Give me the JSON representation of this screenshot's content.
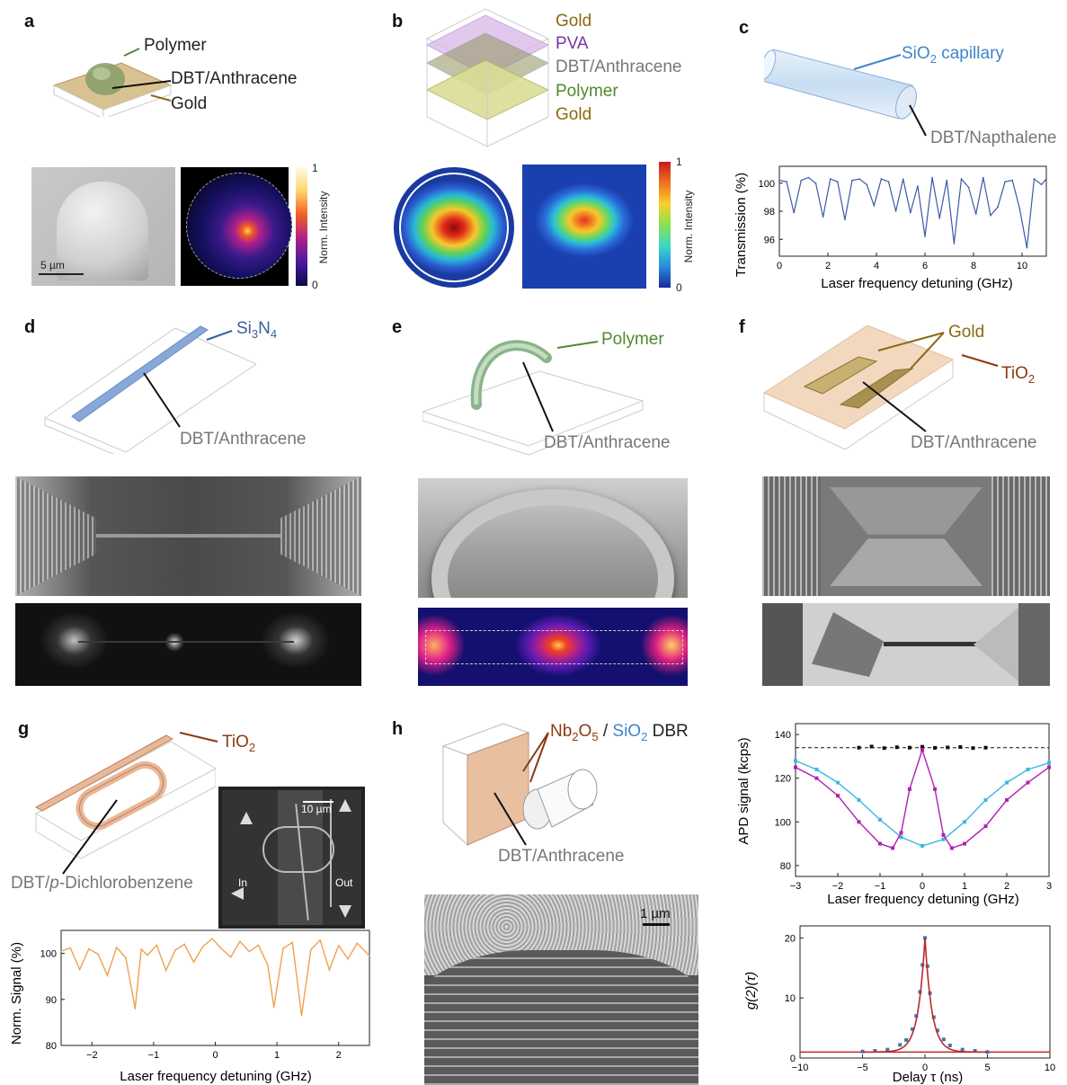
{
  "colors": {
    "polymer": "#4f8a2e",
    "gold": "#8a6a12",
    "grey": "#777777",
    "pva": "#7a32a8",
    "blue": "#3f86c8",
    "si3n4": "#3a5f9c",
    "tio2": "#8b3a10",
    "dbr_nb": "#8b3a10",
    "dbr_sio2": "#3f86c8",
    "orange_trace": "#f0a050",
    "blue_trace": "#3a5aa8",
    "cyan": "#3ab8e0",
    "magenta": "#b020b0",
    "fit_red": "#c0282a"
  },
  "panels": {
    "a": {
      "label": "a",
      "polymer": "Polymer",
      "dbt": "DBT/Anthracene",
      "gold": "Gold",
      "scale": "5 µm",
      "cbar_max": "1",
      "cbar_min": "0",
      "cbar_label": "Norm. Intensity"
    },
    "b": {
      "label": "b",
      "gold_top": "Gold",
      "pva": "PVA",
      "dbt": "DBT/Anthracene",
      "polymer": "Polymer",
      "gold_bottom": "Gold",
      "cbar_max": "1",
      "cbar_min": "0",
      "cbar_label": "Norm. Intensity"
    },
    "c": {
      "label": "c",
      "capillary_prefix": "SiO",
      "capillary_sub": "2",
      "capillary_suffix": " capillary",
      "dbt": "DBT/Napthalene"
    },
    "d": {
      "label": "d",
      "si_prefix": "Si",
      "si_sub1": "3",
      "si_mid": "N",
      "si_sub2": "4",
      "dbt": "DBT/Anthracene"
    },
    "e": {
      "label": "e",
      "polymer": "Polymer",
      "dbt": "DBT/Anthracene"
    },
    "f": {
      "label": "f",
      "gold": "Gold",
      "tio_prefix": "TiO",
      "tio_sub": "2",
      "dbt": "DBT/Anthracene"
    },
    "g": {
      "label": "g",
      "tio_prefix": "TiO",
      "tio_sub": "2",
      "dbt_prefix": "DBT/",
      "dbt_italic": "p",
      "dbt_suffix": "-Dichlorobenzene",
      "scale": "10 µm",
      "port_in": "In",
      "port_out": "Out"
    },
    "h": {
      "label": "h",
      "nb": "Nb",
      "nb_sub": "2",
      "nb_o": "O",
      "nb_osub": "5",
      "slash": " / ",
      "sio": "SiO",
      "sio_sub": "2",
      "dbr": " DBR",
      "dbt": "DBT/Anthracene",
      "scale": "1 µm"
    }
  },
  "chart_data": [
    {
      "id": "c",
      "type": "line",
      "title": "",
      "xlabel": "Laser frequency detuning (GHz)",
      "ylabel": "Transmission (%)",
      "xlim": [
        0,
        11
      ],
      "ylim": [
        94.8,
        101.2
      ],
      "xticks": [
        0,
        2,
        4,
        6,
        8,
        10
      ],
      "yticks": [
        96,
        98,
        100
      ],
      "series": [
        {
          "x": [
            0,
            0.3,
            0.6,
            0.9,
            1.2,
            1.5,
            1.8,
            2.1,
            2.4,
            2.7,
            3.0,
            3.3,
            3.6,
            3.9,
            4.2,
            4.5,
            4.8,
            5.1,
            5.4,
            5.7,
            6.0,
            6.3,
            6.6,
            6.9,
            7.2,
            7.5,
            7.8,
            8.1,
            8.4,
            8.7,
            9.0,
            9.3,
            9.6,
            9.9,
            10.2,
            10.5,
            10.8,
            11.0
          ],
          "values": [
            100.2,
            100.1,
            97.9,
            100.2,
            100.4,
            100.0,
            97.6,
            100.3,
            100.1,
            97.4,
            100.2,
            100.3,
            99.9,
            98.4,
            100.3,
            100.1,
            98.0,
            100.3,
            97.9,
            99.8,
            96.2,
            100.4,
            97.5,
            100.2,
            95.7,
            100.3,
            99.7,
            97.8,
            100.4,
            97.7,
            98.3,
            100.1,
            100.2,
            98.2,
            95.4,
            100.3,
            99.9,
            100.3
          ]
        }
      ]
    },
    {
      "id": "g",
      "type": "line",
      "title": "",
      "xlabel": "Laser frequency detuning (GHz)",
      "ylabel": "Norm. Signal (%)",
      "xlim": [
        -2.5,
        2.5
      ],
      "ylim": [
        80,
        105
      ],
      "xticks": [
        -2,
        -1,
        0,
        1,
        2
      ],
      "yticks": [
        80,
        90,
        100
      ],
      "series": [
        {
          "x": [
            -2.5,
            -2.35,
            -2.2,
            -2.05,
            -1.9,
            -1.75,
            -1.6,
            -1.45,
            -1.3,
            -1.2,
            -1.1,
            -0.95,
            -0.8,
            -0.65,
            -0.5,
            -0.35,
            -0.2,
            -0.05,
            0.1,
            0.25,
            0.4,
            0.55,
            0.7,
            0.85,
            0.95,
            1.1,
            1.25,
            1.4,
            1.55,
            1.7,
            1.85,
            2.0,
            2.15,
            2.3,
            2.5
          ],
          "values": [
            100.5,
            101.2,
            96.5,
            101.0,
            99.8,
            95.2,
            101.3,
            99.0,
            88.0,
            100.9,
            99.6,
            101.8,
            96.3,
            100.7,
            102.0,
            98.1,
            101.5,
            103.2,
            101.0,
            99.2,
            102.6,
            100.4,
            101.8,
            97.5,
            88.3,
            101.1,
            102.4,
            86.5,
            100.8,
            102.9,
            96.4,
            101.7,
            98.8,
            102.2,
            99.5
          ]
        }
      ]
    },
    {
      "id": "h-apd",
      "type": "scatter",
      "title": "",
      "xlabel": "Laser frequency detuning (GHz)",
      "ylabel": "APD signal (kcps)",
      "xlim": [
        -3,
        3
      ],
      "ylim": [
        75,
        145
      ],
      "xticks": [
        -3,
        -2,
        -1,
        0,
        1,
        2,
        3
      ],
      "yticks": [
        80,
        100,
        120,
        140
      ],
      "reference_line": 134,
      "series": [
        {
          "name": "",
          "color": "black",
          "x": [
            -1.5,
            -1.2,
            -0.9,
            -0.6,
            -0.3,
            0,
            0.3,
            0.6,
            0.9,
            1.2,
            1.5
          ],
          "values": [
            134,
            134.5,
            133.8,
            134.2,
            134,
            134.4,
            133.9,
            134.1,
            134.3,
            133.8,
            134
          ]
        },
        {
          "name": "",
          "color": "cyan",
          "x": [
            -3,
            -2.5,
            -2,
            -1.5,
            -1,
            -0.5,
            0,
            0.5,
            1,
            1.5,
            2,
            2.5,
            3
          ],
          "values": [
            128,
            124,
            118,
            110,
            101,
            93,
            89,
            92,
            100,
            110,
            118,
            124,
            127
          ]
        },
        {
          "name": "",
          "color": "magenta",
          "x": [
            -3,
            -2.5,
            -2,
            -1.5,
            -1,
            -0.7,
            -0.5,
            -0.3,
            0,
            0.3,
            0.5,
            0.7,
            1,
            1.5,
            2,
            2.5,
            3
          ],
          "values": [
            125,
            120,
            112,
            100,
            90,
            88,
            95,
            115,
            133,
            115,
            94,
            88,
            90,
            98,
            110,
            118,
            125
          ]
        }
      ]
    },
    {
      "id": "h-g2",
      "type": "scatter",
      "title": "",
      "xlabel": "Delay τ (ns)",
      "ylabel": "g(2)(τ)",
      "xlim": [
        -10,
        10
      ],
      "ylim": [
        0,
        22
      ],
      "xticks": [
        -10,
        -5,
        0,
        5,
        10
      ],
      "yticks": [
        0,
        10,
        20
      ],
      "baseline": 1,
      "series": [
        {
          "name": "",
          "x": [
            -5,
            -4,
            -3,
            -2,
            -1.5,
            -1,
            -0.7,
            -0.4,
            -0.2,
            0,
            0.2,
            0.4,
            0.7,
            1,
            1.5,
            2,
            3,
            4,
            5
          ],
          "values": [
            1.1,
            1.2,
            1.4,
            2.2,
            3.0,
            4.8,
            7.0,
            11.0,
            15.5,
            20.0,
            15.3,
            10.8,
            6.8,
            4.6,
            3.1,
            2.1,
            1.4,
            1.2,
            1.0
          ]
        }
      ]
    }
  ]
}
